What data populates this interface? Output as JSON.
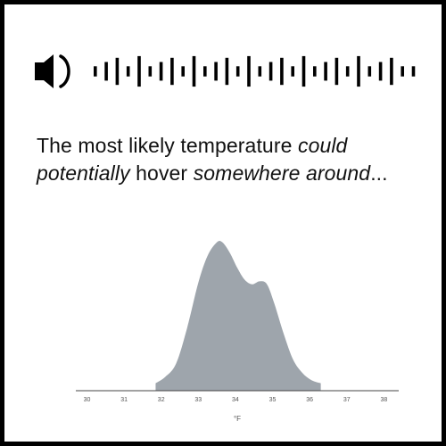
{
  "caption": {
    "part1": "The most likely temperature ",
    "part2": "could potentially",
    "part3": " hover ",
    "part4": "somewhere around",
    "part5": "..."
  },
  "audio": {
    "icon": "speaker-icon",
    "waveform_levels": [
      0.3,
      0.55,
      0.8,
      0.3,
      0.9,
      0.3,
      0.55,
      0.8,
      0.3,
      0.9,
      0.3,
      0.55,
      0.8,
      0.3,
      0.9,
      0.3,
      0.55,
      0.8,
      0.3,
      0.9,
      0.3,
      0.55,
      0.8,
      0.3,
      0.9,
      0.3,
      0.55,
      0.8,
      0.3,
      0.3
    ]
  },
  "chart_data": {
    "type": "area",
    "xlabel": "°F",
    "x_ticks": [
      "30",
      "31",
      "32",
      "33",
      "34",
      "35",
      "36",
      "37",
      "38"
    ],
    "xlim": [
      29.7,
      38.4
    ],
    "ylim": [
      0,
      1
    ],
    "fill_color": "#9ea5ac",
    "axis_color": "#444444",
    "density": [
      {
        "x": 31.85,
        "y": 0.05
      },
      {
        "x": 32.1,
        "y": 0.09
      },
      {
        "x": 32.4,
        "y": 0.18
      },
      {
        "x": 32.7,
        "y": 0.42
      },
      {
        "x": 33.0,
        "y": 0.72
      },
      {
        "x": 33.25,
        "y": 0.9
      },
      {
        "x": 33.5,
        "y": 0.99
      },
      {
        "x": 33.65,
        "y": 0.99
      },
      {
        "x": 33.85,
        "y": 0.92
      },
      {
        "x": 34.05,
        "y": 0.82
      },
      {
        "x": 34.25,
        "y": 0.74
      },
      {
        "x": 34.45,
        "y": 0.71
      },
      {
        "x": 34.65,
        "y": 0.73
      },
      {
        "x": 34.85,
        "y": 0.71
      },
      {
        "x": 35.05,
        "y": 0.58
      },
      {
        "x": 35.3,
        "y": 0.38
      },
      {
        "x": 35.55,
        "y": 0.21
      },
      {
        "x": 35.8,
        "y": 0.12
      },
      {
        "x": 36.05,
        "y": 0.07
      },
      {
        "x": 36.3,
        "y": 0.05
      }
    ]
  }
}
